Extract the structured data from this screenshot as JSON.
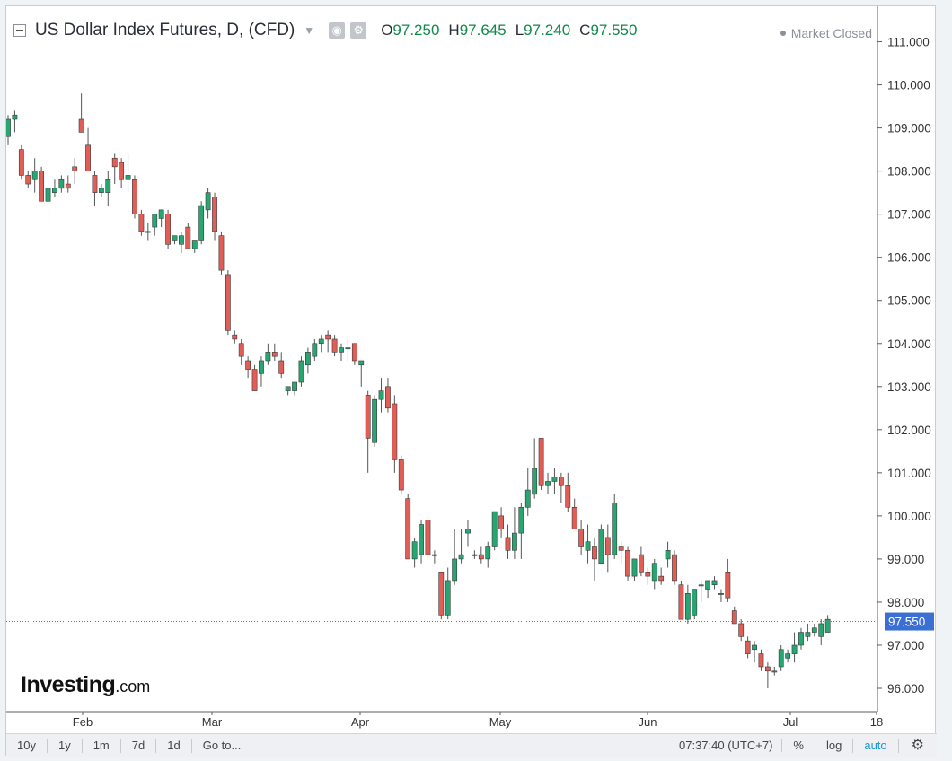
{
  "header": {
    "title": "US Dollar Index Futures, D, (CFD)",
    "ohlc": [
      {
        "key": "O",
        "value": "97.250"
      },
      {
        "key": "H",
        "value": "97.645"
      },
      {
        "key": "L",
        "value": "97.240"
      },
      {
        "key": "C",
        "value": "97.550"
      }
    ],
    "market_status": "Market Closed",
    "icons": [
      "eye-icon",
      "gear-icon"
    ]
  },
  "logo": {
    "text": "Investing",
    "suffix": ".com"
  },
  "toolbar": {
    "ranges": [
      "10y",
      "1y",
      "1m",
      "7d",
      "1d",
      "Go to..."
    ],
    "time": "07:37:40 (UTC+7)",
    "percent": "%",
    "log": "log",
    "auto": "auto"
  },
  "colors": {
    "up": "#26a671",
    "down": "#e25d55",
    "last_line": "#4a7fe0",
    "last_badge": "#3b6fd4"
  },
  "chart_data": {
    "type": "candlestick",
    "y_ticks": [
      "96.000",
      "97.000",
      "98.000",
      "99.000",
      "100.000",
      "101.000",
      "102.000",
      "103.000",
      "104.000",
      "105.000",
      "106.000",
      "107.000",
      "108.000",
      "109.000",
      "110.000",
      "111.000"
    ],
    "ylim": [
      95.2,
      111.3
    ],
    "x_ticks": [
      "Feb",
      "Mar",
      "Apr",
      "May",
      "Jun",
      "Jul",
      "18"
    ],
    "last_price": "97.550",
    "candles": [
      [
        108.8,
        109.3,
        108.6,
        109.2
      ],
      [
        109.2,
        109.4,
        108.9,
        109.3
      ],
      [
        108.5,
        108.6,
        107.8,
        107.9
      ],
      [
        107.9,
        108.0,
        107.6,
        107.7
      ],
      [
        107.8,
        108.3,
        107.5,
        108.0
      ],
      [
        108.0,
        108.1,
        107.3,
        107.3
      ],
      [
        107.3,
        107.6,
        106.8,
        107.6
      ],
      [
        107.5,
        107.8,
        107.4,
        107.6
      ],
      [
        107.6,
        107.9,
        107.5,
        107.8
      ],
      [
        107.7,
        107.9,
        107.5,
        107.6
      ],
      [
        108.1,
        108.3,
        107.7,
        108.0
      ],
      [
        109.2,
        109.8,
        108.9,
        108.9
      ],
      [
        108.6,
        109.0,
        108.0,
        108.0
      ],
      [
        107.9,
        108.0,
        107.2,
        107.5
      ],
      [
        107.5,
        107.7,
        107.4,
        107.6
      ],
      [
        107.5,
        108.0,
        107.2,
        107.8
      ],
      [
        108.3,
        108.4,
        107.7,
        108.1
      ],
      [
        108.2,
        108.3,
        107.6,
        107.8
      ],
      [
        107.8,
        108.4,
        107.5,
        107.9
      ],
      [
        107.8,
        107.9,
        106.9,
        107.0
      ],
      [
        107.0,
        107.1,
        106.5,
        106.6
      ],
      [
        106.6,
        106.8,
        106.4,
        106.6
      ],
      [
        106.7,
        107.0,
        106.5,
        107.0
      ],
      [
        106.9,
        107.1,
        106.7,
        107.1
      ],
      [
        107.0,
        107.1,
        106.2,
        106.3
      ],
      [
        106.4,
        106.5,
        106.3,
        106.5
      ],
      [
        106.3,
        106.6,
        106.1,
        106.5
      ],
      [
        106.7,
        106.8,
        106.2,
        106.2
      ],
      [
        106.2,
        106.4,
        106.1,
        106.4
      ],
      [
        106.4,
        107.3,
        106.3,
        107.2
      ],
      [
        107.1,
        107.6,
        106.9,
        107.5
      ],
      [
        107.4,
        107.5,
        106.4,
        106.6
      ],
      [
        106.5,
        106.6,
        105.6,
        105.7
      ],
      [
        105.6,
        105.7,
        104.2,
        104.3
      ],
      [
        104.2,
        104.3,
        104.0,
        104.1
      ],
      [
        104.0,
        104.1,
        103.5,
        103.7
      ],
      [
        103.6,
        103.7,
        103.2,
        103.4
      ],
      [
        103.4,
        103.5,
        102.9,
        102.9
      ],
      [
        103.3,
        103.7,
        103.0,
        103.6
      ],
      [
        103.6,
        104.0,
        103.5,
        103.8
      ],
      [
        103.8,
        104.0,
        103.6,
        103.7
      ],
      [
        103.6,
        103.8,
        103.2,
        103.3
      ],
      [
        102.9,
        103.0,
        102.8,
        103.0
      ],
      [
        102.9,
        103.1,
        102.8,
        103.1
      ],
      [
        103.1,
        103.7,
        103.0,
        103.6
      ],
      [
        103.5,
        103.9,
        103.3,
        103.8
      ],
      [
        103.7,
        104.1,
        103.6,
        104.0
      ],
      [
        104.0,
        104.2,
        103.8,
        104.1
      ],
      [
        104.2,
        104.3,
        103.8,
        104.1
      ],
      [
        104.1,
        104.2,
        103.7,
        103.8
      ],
      [
        103.8,
        104.0,
        103.6,
        103.9
      ],
      [
        103.9,
        104.1,
        103.6,
        103.9
      ],
      [
        104.0,
        104.0,
        103.5,
        103.6
      ],
      [
        103.5,
        103.6,
        103.0,
        103.6
      ],
      [
        102.8,
        102.9,
        101.0,
        101.8
      ],
      [
        101.7,
        102.8,
        101.6,
        102.7
      ],
      [
        102.7,
        103.2,
        102.4,
        102.9
      ],
      [
        103.0,
        103.2,
        102.4,
        102.5
      ],
      [
        102.6,
        102.8,
        101.0,
        101.3
      ],
      [
        101.3,
        101.4,
        100.5,
        100.6
      ],
      [
        100.4,
        100.5,
        99.0,
        99.0
      ],
      [
        99.0,
        99.5,
        98.8,
        99.4
      ],
      [
        99.1,
        99.9,
        98.9,
        99.8
      ],
      [
        99.9,
        100.0,
        99.0,
        99.1
      ],
      [
        99.1,
        99.2,
        98.9,
        99.1
      ],
      [
        98.7,
        98.7,
        97.6,
        97.7
      ],
      [
        97.7,
        98.8,
        97.6,
        98.5
      ],
      [
        98.5,
        99.7,
        98.4,
        99.0
      ],
      [
        99.0,
        99.7,
        98.9,
        99.1
      ],
      [
        99.6,
        99.9,
        99.3,
        99.7
      ],
      [
        99.1,
        99.2,
        99.0,
        99.1
      ],
      [
        99.1,
        99.3,
        98.9,
        99.0
      ],
      [
        99.0,
        99.4,
        98.8,
        99.3
      ],
      [
        99.3,
        100.1,
        99.2,
        100.1
      ],
      [
        100.0,
        100.2,
        99.5,
        99.7
      ],
      [
        99.5,
        99.8,
        99.0,
        99.2
      ],
      [
        99.2,
        100.2,
        99.0,
        99.6
      ],
      [
        99.6,
        100.3,
        99.0,
        100.2
      ],
      [
        100.2,
        101.1,
        100.0,
        100.6
      ],
      [
        100.5,
        101.8,
        100.4,
        101.1
      ],
      [
        101.8,
        101.8,
        100.6,
        100.7
      ],
      [
        100.7,
        101.0,
        100.5,
        100.8
      ],
      [
        100.8,
        101.1,
        100.5,
        100.9
      ],
      [
        100.9,
        101.0,
        100.3,
        100.7
      ],
      [
        100.7,
        101.0,
        100.1,
        100.2
      ],
      [
        100.2,
        100.4,
        99.7,
        99.7
      ],
      [
        99.7,
        99.9,
        99.1,
        99.3
      ],
      [
        99.2,
        99.8,
        98.9,
        99.4
      ],
      [
        99.3,
        99.5,
        98.5,
        99.0
      ],
      [
        98.9,
        99.8,
        98.9,
        99.7
      ],
      [
        99.5,
        99.8,
        98.7,
        99.1
      ],
      [
        99.1,
        100.5,
        99.0,
        100.3
      ],
      [
        99.3,
        99.4,
        98.9,
        99.2
      ],
      [
        99.2,
        99.3,
        98.5,
        98.6
      ],
      [
        98.6,
        99.0,
        98.5,
        99.0
      ],
      [
        99.1,
        99.3,
        98.6,
        98.7
      ],
      [
        98.7,
        98.8,
        98.4,
        98.6
      ],
      [
        98.5,
        99.0,
        98.3,
        98.9
      ],
      [
        98.6,
        98.8,
        98.4,
        98.5
      ],
      [
        99.0,
        99.4,
        98.8,
        99.2
      ],
      [
        99.1,
        99.2,
        98.4,
        98.5
      ],
      [
        98.4,
        98.5,
        97.6,
        97.6
      ],
      [
        97.6,
        98.4,
        97.5,
        98.2
      ],
      [
        97.7,
        98.3,
        97.6,
        98.3
      ],
      [
        98.4,
        98.5,
        98.0,
        98.4
      ],
      [
        98.3,
        98.5,
        98.1,
        98.5
      ],
      [
        98.4,
        98.6,
        98.3,
        98.5
      ],
      [
        98.2,
        98.3,
        98.0,
        98.2
      ],
      [
        98.7,
        99.0,
        98.0,
        98.1
      ],
      [
        97.8,
        97.9,
        97.5,
        97.5
      ],
      [
        97.5,
        97.6,
        97.1,
        97.2
      ],
      [
        97.1,
        97.2,
        96.7,
        96.8
      ],
      [
        96.9,
        97.1,
        96.6,
        97.0
      ],
      [
        96.8,
        96.9,
        96.4,
        96.5
      ],
      [
        96.5,
        96.6,
        96.0,
        96.4
      ],
      [
        96.4,
        96.5,
        96.3,
        96.4
      ],
      [
        96.5,
        97.0,
        96.4,
        96.9
      ],
      [
        96.7,
        96.9,
        96.6,
        96.8
      ],
      [
        96.8,
        97.3,
        96.6,
        97.0
      ],
      [
        97.0,
        97.4,
        96.9,
        97.3
      ],
      [
        97.2,
        97.5,
        97.1,
        97.3
      ],
      [
        97.3,
        97.5,
        97.2,
        97.4
      ],
      [
        97.2,
        97.6,
        97.0,
        97.5
      ],
      [
        97.3,
        97.7,
        97.3,
        97.6
      ]
    ]
  }
}
